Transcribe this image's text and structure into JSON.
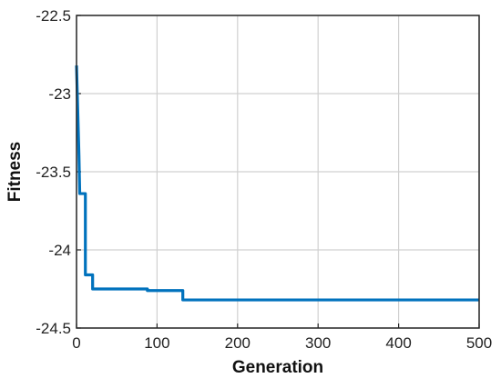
{
  "chart_data": {
    "type": "line",
    "x_label": "Generation",
    "y_label": "Fitness",
    "x": [
      0,
      2,
      3,
      4,
      5,
      11,
      11,
      20,
      20,
      88,
      88,
      132,
      132,
      500
    ],
    "values": [
      -22.82,
      -23.2,
      -23.39,
      -23.64,
      -23.64,
      -23.64,
      -24.16,
      -24.16,
      -24.25,
      -24.25,
      -24.26,
      -24.26,
      -24.32,
      -24.32
    ],
    "color": "#0072bd",
    "xlim": [
      0,
      500
    ],
    "xticks": [
      0,
      100,
      200,
      300,
      400,
      500
    ],
    "ylim": [
      -24.5,
      -22.5
    ],
    "yticks": [
      -24.5,
      -24,
      -23.5,
      -23,
      -22.5
    ],
    "grid": true
  }
}
